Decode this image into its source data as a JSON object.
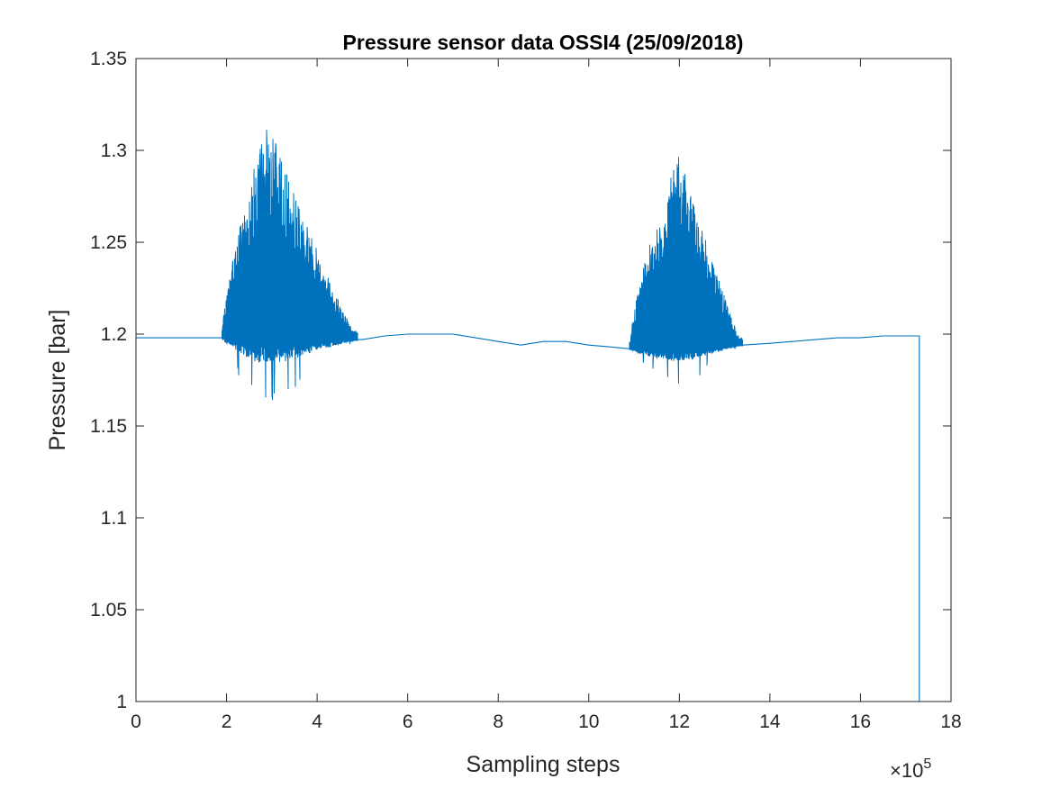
{
  "chart_data": {
    "type": "line",
    "title": "Pressure sensor data OSSI4 (25/09/2018)",
    "xlabel": "Sampling steps",
    "ylabel": "Pressure [bar]",
    "x_multiplier": {
      "times": "×10",
      "exponent": "5",
      "value": 100000
    },
    "xlim": [
      0,
      1800000
    ],
    "ylim": [
      1.0,
      1.35
    ],
    "x_ticks": [
      0,
      200000,
      400000,
      600000,
      800000,
      1000000,
      1200000,
      1400000,
      1600000,
      1800000
    ],
    "x_tick_labels": [
      "0",
      "2",
      "4",
      "6",
      "8",
      "10",
      "12",
      "14",
      "16",
      "18"
    ],
    "y_ticks": [
      1.0,
      1.05,
      1.1,
      1.15,
      1.2,
      1.25,
      1.3,
      1.35
    ],
    "y_tick_labels": [
      "1",
      "1.05",
      "1.1",
      "1.15",
      "1.2",
      "1.25",
      "1.3",
      "1.35"
    ],
    "grid": false,
    "line_color": "#0072BD",
    "series": [
      {
        "name": "",
        "x": [
          0,
          100000,
          190000,
          250000,
          300000,
          350000,
          400000,
          450000,
          500000,
          550000,
          600000,
          650000,
          700000,
          750000,
          800000,
          850000,
          900000,
          950000,
          1000000,
          1050000,
          1090000,
          1150000,
          1200000,
          1250000,
          1300000,
          1340000,
          1400000,
          1450000,
          1500000,
          1550000,
          1600000,
          1650000,
          1700000,
          1730000,
          1730000
        ],
        "y": [
          1.198,
          1.198,
          1.198,
          1.2,
          1.203,
          1.202,
          1.2,
          1.197,
          1.197,
          1.199,
          1.2,
          1.2,
          1.2,
          1.198,
          1.196,
          1.194,
          1.196,
          1.196,
          1.194,
          1.193,
          1.192,
          1.194,
          1.195,
          1.195,
          1.195,
          1.194,
          1.195,
          1.196,
          1.197,
          1.198,
          1.198,
          1.199,
          1.199,
          1.199,
          1.0
        ]
      }
    ],
    "oscillation_bursts": [
      {
        "x_start": 190000,
        "x_peak": 290000,
        "x_end": 490000,
        "y_upper_max": 1.316,
        "y_lower_min": 1.162
      },
      {
        "x_start": 1090000,
        "x_peak": 1200000,
        "x_end": 1340000,
        "y_upper_max": 1.299,
        "y_lower_min": 1.173
      }
    ]
  }
}
